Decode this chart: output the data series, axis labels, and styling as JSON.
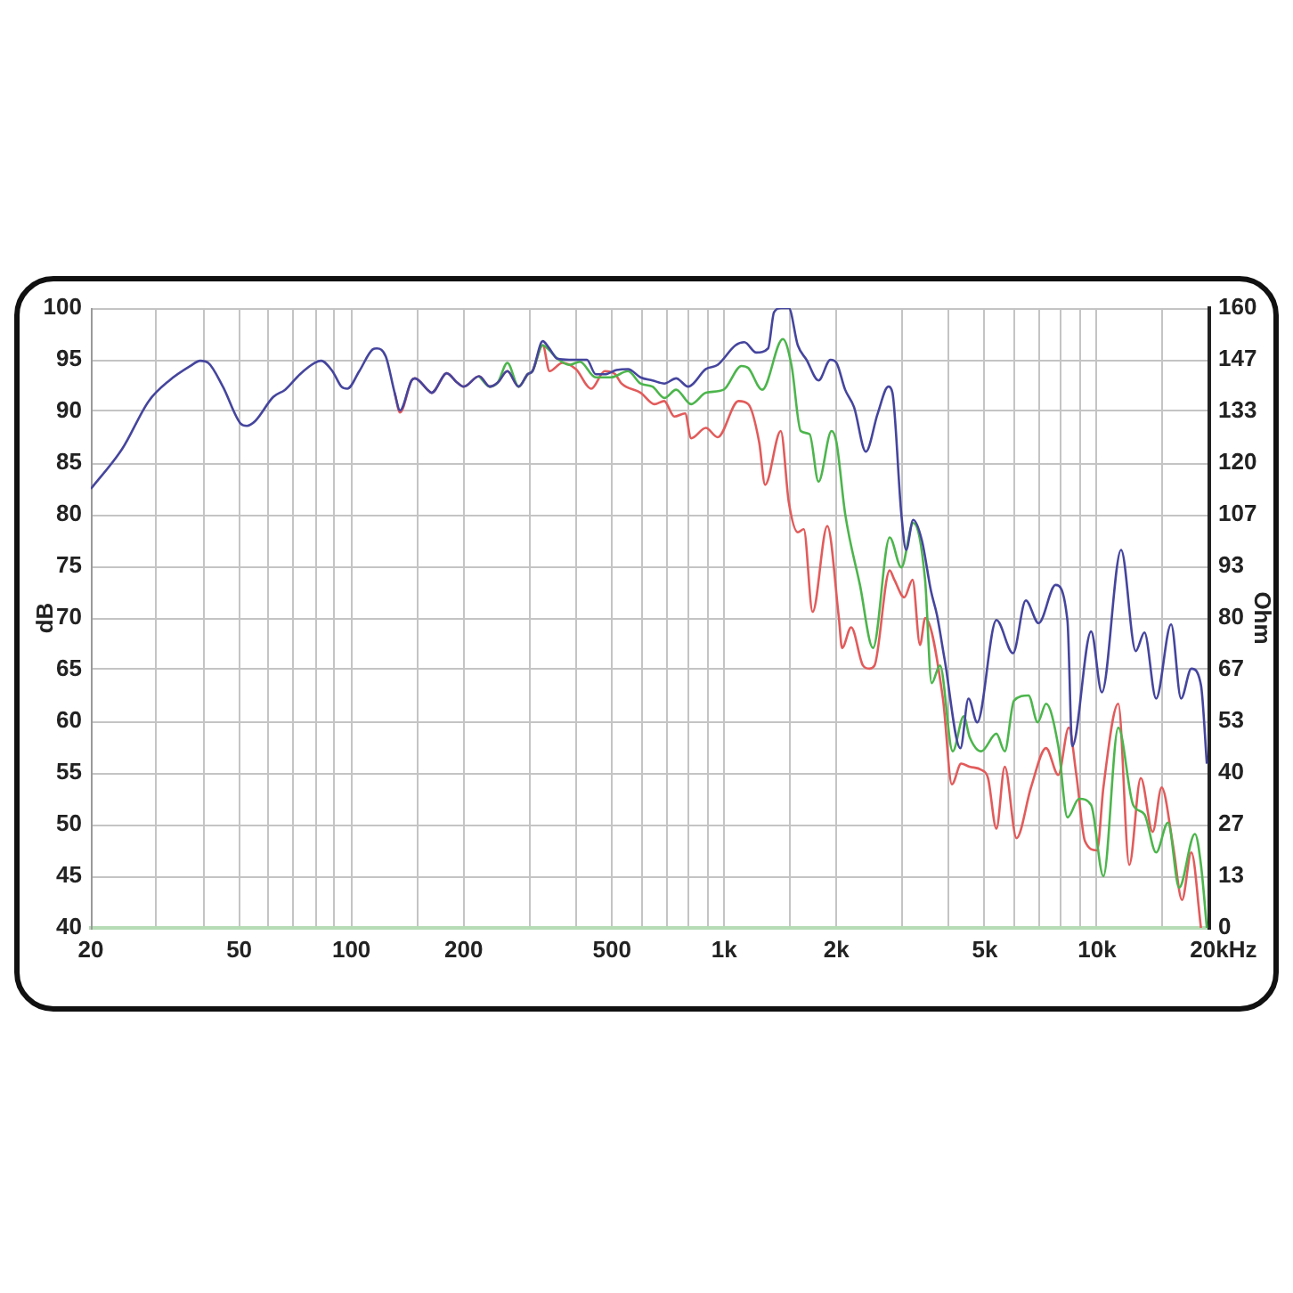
{
  "chart_data": {
    "type": "line",
    "xlabel": "Hz",
    "ylabel": "dB",
    "y2label": "Ohm",
    "log": "x",
    "grid": true,
    "xlim": [
      20,
      20000
    ],
    "xticks": [
      20,
      {
        "value": 30,
        "label": null
      },
      {
        "value": 40,
        "label": null
      },
      50,
      {
        "value": 60,
        "label": null
      },
      {
        "value": 70,
        "label": null
      },
      {
        "value": 80,
        "label": null
      },
      {
        "value": 90,
        "label": null
      },
      100,
      {
        "value": 150,
        "label": null
      },
      200,
      {
        "value": 300,
        "label": null
      },
      {
        "value": 400,
        "label": null
      },
      500,
      {
        "value": 600,
        "label": null
      },
      {
        "value": 700,
        "label": null
      },
      {
        "value": 800,
        "label": null
      },
      {
        "value": 900,
        "label": null
      },
      {
        "value": 1000,
        "label": "1k"
      },
      {
        "value": 1500,
        "label": null
      },
      {
        "value": 2000,
        "label": "2k"
      },
      {
        "value": 3000,
        "label": null
      },
      {
        "value": 4000,
        "label": null
      },
      {
        "value": 5000,
        "label": "5k"
      },
      {
        "value": 6000,
        "label": null
      },
      {
        "value": 7000,
        "label": null
      },
      {
        "value": 8000,
        "label": null
      },
      {
        "value": 9000,
        "label": null
      },
      {
        "value": 10000,
        "label": "10k"
      },
      {
        "value": 15000,
        "label": null
      },
      {
        "value": 20000,
        "label": "20k"
      }
    ],
    "ylim": [
      40,
      100
    ],
    "yticks": [
      40,
      45,
      50,
      55,
      60,
      65,
      70,
      75,
      80,
      85,
      90,
      95,
      100
    ],
    "y2lim": [
      0,
      160
    ],
    "y2ticks": [
      0,
      {
        "value": 13.333,
        "label": "13"
      },
      {
        "value": 26.667,
        "label": "27"
      },
      40,
      {
        "value": 53.333,
        "label": "53"
      },
      {
        "value": 66.667,
        "label": "67"
      },
      80,
      {
        "value": 93.333,
        "label": "93"
      },
      {
        "value": 106.667,
        "label": "107"
      },
      120,
      {
        "value": 133.333,
        "label": "133"
      },
      {
        "value": 146.667,
        "label": "147"
      },
      160
    ],
    "series": [
      {
        "color": "#45459e",
        "x": [
          20,
          24.3,
          28.6,
          32.5,
          37,
          39.3,
          41.3,
          45.2,
          50.5,
          52.4,
          55.3,
          61.7,
          66.4,
          72.8,
          79.8,
          82.9,
          88.9,
          94,
          97.5,
          105,
          114,
          117,
          123.7,
          130.6,
          135,
          145,
          148,
          160,
          164,
          178,
          180,
          192,
          200,
          220,
          235,
          247,
          262,
          281,
          297,
          306,
          326,
          338,
          357,
          384,
          410,
          428,
          452,
          478,
          514,
          552,
          596,
          642,
          691,
          743,
          800,
          893,
          960,
          1072,
          1132,
          1219,
          1311,
          1360,
          1420,
          1490,
          1575,
          1662,
          1790,
          1927,
          2000,
          2110,
          2230,
          2398,
          2580,
          2756,
          2826,
          2985,
          3075,
          3213,
          3390,
          3586,
          3720,
          3900,
          4300,
          4520,
          4770,
          5370,
          5950,
          6440,
          6970,
          7740,
          8330,
          8580,
          9640,
          10300,
          11600,
          12700,
          13400,
          14400,
          15800,
          16800,
          17900,
          19000,
          19700
        ],
        "values": [
          82.5,
          86.4,
          91.0,
          93.0,
          94.4,
          94.9,
          94.7,
          92.4,
          88.8,
          88.6,
          89.1,
          91.4,
          92.1,
          93.6,
          94.7,
          94.9,
          93.9,
          92.4,
          92.2,
          93.9,
          96.0,
          96.1,
          95.3,
          91.8,
          90.1,
          93.0,
          93.2,
          92.1,
          91.8,
          93.6,
          93.7,
          92.8,
          92.4,
          93.4,
          92.4,
          92.8,
          93.9,
          92.4,
          93.6,
          93.9,
          96.8,
          96.2,
          95.1,
          95.0,
          95.0,
          95.0,
          93.6,
          93.6,
          94.0,
          94.1,
          93.3,
          93.0,
          92.7,
          93.2,
          92.4,
          94.1,
          94.5,
          96.4,
          96.7,
          95.7,
          96.1,
          99.6,
          100,
          100,
          96.4,
          95.0,
          93.0,
          95.0,
          94.7,
          92.1,
          90.4,
          86.1,
          89.8,
          92.4,
          91.8,
          80.1,
          76.6,
          79.5,
          77.5,
          72.6,
          70.3,
          66,
          57.4,
          62.2,
          59.9,
          69.8,
          66.6,
          71.7,
          69.5,
          73.2,
          69.7,
          57.6,
          68.7,
          62.8,
          76.6,
          66.8,
          68.6,
          62.2,
          69.4,
          62.2,
          65.1,
          63.5,
          55.9
        ]
      },
      {
        "color": "#4cb54c",
        "x": [
          220,
          235,
          247,
          262,
          281,
          297,
          306,
          326,
          338,
          357,
          384,
          410,
          452,
          497,
          552,
          596,
          642,
          691,
          743,
          815,
          893,
          996,
          1112,
          1160,
          1264,
          1436,
          1516,
          1604,
          1694,
          1790,
          1940,
          2000,
          2110,
          2312,
          2506,
          2778,
          2985,
          3213,
          3457,
          3600,
          3790,
          4100,
          4390,
          4550,
          4890,
          5370,
          5655,
          5985,
          6550,
          6930,
          7300,
          7870,
          8330,
          8950,
          9640,
          10400,
          11400,
          12500,
          13400,
          14400,
          15500,
          16600,
          18300,
          19000,
          19700
        ],
        "values": [
          93.4,
          92.4,
          92.8,
          94.7,
          92.4,
          93.6,
          93.9,
          96.4,
          96.0,
          95.1,
          94.5,
          94.8,
          93.3,
          93.3,
          93.9,
          92.7,
          92.4,
          91.3,
          92.1,
          90.7,
          91.8,
          92.1,
          94.4,
          94.2,
          92.1,
          97.0,
          94.4,
          88.1,
          87.8,
          83.2,
          88.1,
          87.0,
          80.1,
          73.2,
          67.1,
          77.8,
          74.9,
          79.2,
          73.7,
          63.7,
          65.4,
          57.1,
          60.5,
          58.5,
          57.1,
          58.8,
          57.1,
          62.0,
          62.5,
          59.9,
          61.7,
          57.6,
          50.7,
          52.5,
          51.9,
          45.0,
          59.4,
          51.9,
          51.0,
          47.3,
          50.2,
          43.9,
          49.1,
          46.1,
          40
        ]
      },
      {
        "color": "#e25b5b",
        "x": [
          130.6,
          135,
          145,
          148,
          160,
          164,
          178,
          180,
          192,
          200,
          220,
          235,
          247,
          262,
          281,
          297,
          306,
          326,
          340,
          368,
          400,
          440,
          478,
          510,
          530,
          597,
          650,
          690,
          735,
          785,
          815,
          893,
          960,
          1092,
          1160,
          1241,
          1287,
          1418,
          1490,
          1575,
          1634,
          1726,
          1890,
          2030,
          2070,
          2190,
          2356,
          2450,
          2530,
          2778,
          2860,
          3040,
          3200,
          3350,
          3460,
          3860,
          4080,
          4320,
          4550,
          4890,
          5100,
          5370,
          5655,
          6080,
          6650,
          7300,
          7870,
          8400,
          8800,
          9280,
          10000,
          10400,
          11400,
          12200,
          13100,
          14100,
          14900,
          16000,
          16900,
          17900,
          19000
        ],
        "values": [
          91.8,
          89.9,
          93.0,
          93.2,
          92.1,
          91.8,
          93.6,
          93.7,
          92.8,
          92.4,
          93.4,
          92.4,
          92.8,
          93.9,
          92.4,
          93.6,
          93.9,
          96.4,
          93.9,
          94.7,
          94.1,
          92.2,
          93.9,
          93.6,
          92.7,
          91.8,
          90.7,
          91.0,
          89.5,
          89.8,
          87.4,
          88.4,
          87.5,
          91.0,
          90.7,
          87.0,
          82.9,
          88.1,
          81.2,
          78.3,
          78.6,
          70.6,
          78.9,
          70.0,
          67.1,
          69.1,
          65.4,
          65.1,
          65.4,
          74.6,
          73.7,
          72.0,
          73.7,
          67.4,
          70.0,
          62.2,
          53.9,
          55.9,
          55.6,
          55.3,
          54.5,
          49.6,
          55.6,
          48.7,
          53.6,
          57.4,
          54.8,
          59.4,
          54.8,
          48.4,
          47.5,
          53.6,
          61.7,
          46.1,
          54.5,
          49.3,
          53.6,
          47.9,
          42.7,
          47.3,
          40
        ]
      }
    ]
  }
}
